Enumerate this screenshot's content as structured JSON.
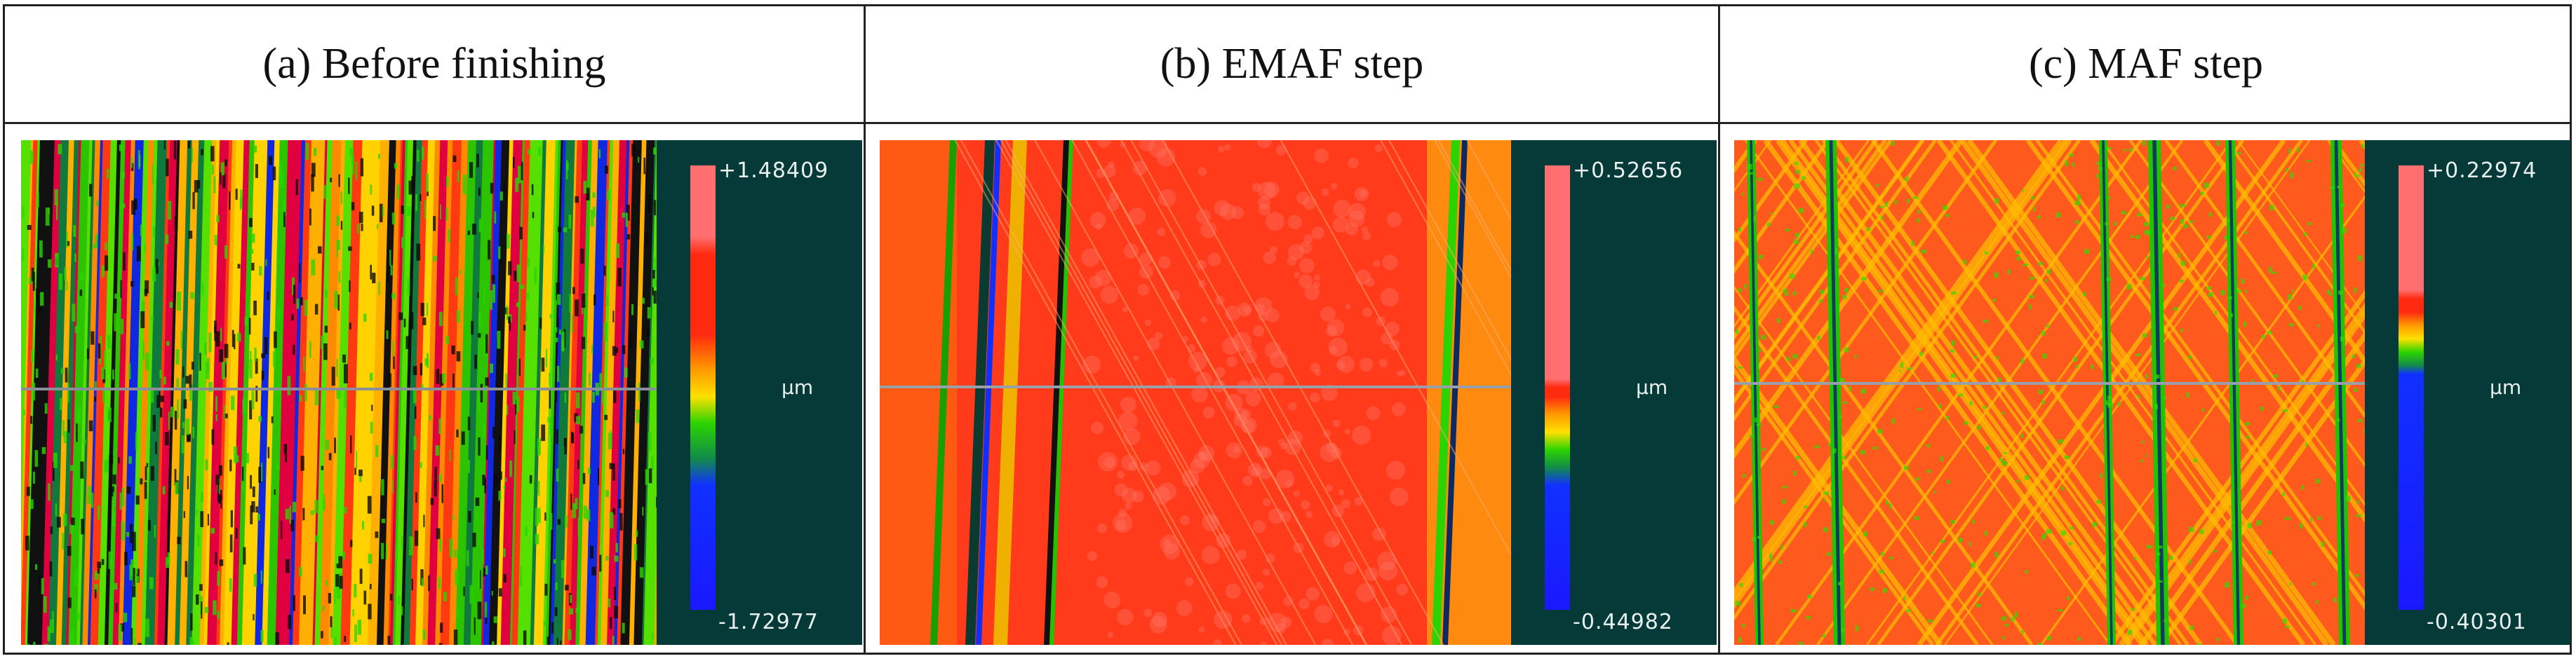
{
  "figure": {
    "panels": [
      {
        "id": "a",
        "header": "(a) Before finishing",
        "scale": {
          "max": "+1.48409",
          "min": "-1.72977",
          "unit": "µm"
        },
        "colors": [
          "#ff6f6f",
          "#ff2a10",
          "#ff9a00",
          "#ffe000",
          "#2bd400",
          "#128a4a",
          "#1030ff",
          "#1a18ff"
        ],
        "texture": "dense-stripes"
      },
      {
        "id": "b",
        "header": "(b) EMAF step",
        "scale": {
          "max": "+0.52656",
          "min": "-0.44982",
          "unit": "µm"
        },
        "colors": [
          "#ff6f6f",
          "#ff2a10",
          "#ff9a00",
          "#ffe000",
          "#2bd400",
          "#128a4a",
          "#1030ff",
          "#1a18ff"
        ],
        "texture": "smooth-red"
      },
      {
        "id": "c",
        "header": "(c) MAF step",
        "scale": {
          "max": "+0.22974",
          "min": "-0.40301",
          "unit": "µm"
        },
        "colors": [
          "#ff6f6f",
          "#ff2a10",
          "#ff9a00",
          "#ffe000",
          "#2bd400",
          "#128a4a",
          "#1030ff",
          "#1a18ff"
        ],
        "texture": "cross-hatch"
      }
    ]
  }
}
